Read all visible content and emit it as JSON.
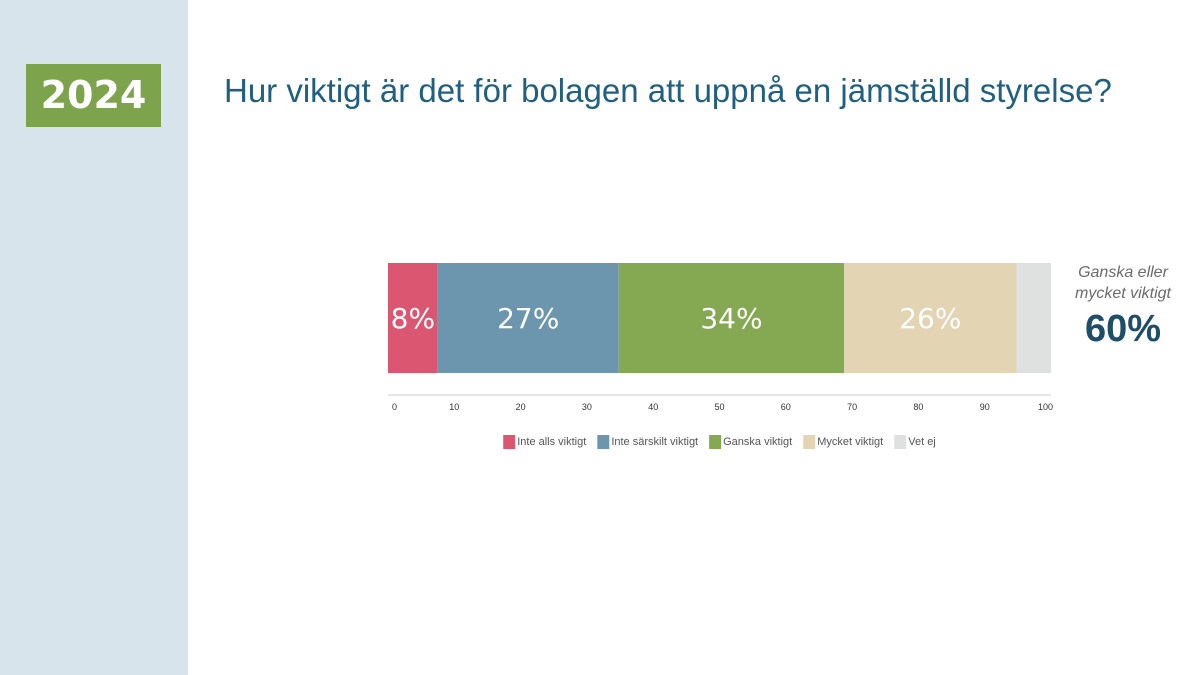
{
  "year": "2024",
  "title": "Hur viktigt är det för bolagen att uppnå en jämställd styrelse?",
  "summary": {
    "label_line1": "Ganska eller",
    "label_line2": "mycket viktigt",
    "value": "60%"
  },
  "chart_data": {
    "type": "bar",
    "orientation": "horizontal-stacked",
    "xlim": [
      0,
      100
    ],
    "xticks": [
      0,
      10,
      20,
      30,
      40,
      50,
      60,
      70,
      80,
      90,
      100
    ],
    "grid": false,
    "legend_position": "bottom",
    "series": [
      {
        "name": "Inte alls viktigt",
        "value": 7.5,
        "label": "8%",
        "color": "#db5670",
        "label_color": "#ffffff"
      },
      {
        "name": "Inte särskilt viktigt",
        "value": 27.3,
        "label": "27%",
        "color": "#6b96ae",
        "label_color": "#ffffff"
      },
      {
        "name": "Ganska viktigt",
        "value": 34,
        "label": "34%",
        "color": "#85a953",
        "label_color": "#ffffff"
      },
      {
        "name": "Mycket viktigt",
        "value": 26,
        "label": "26%",
        "color": "#e3d4b4",
        "label_color": "#ffffff"
      },
      {
        "name": "Vet ej",
        "value": 5.2,
        "label": "",
        "color": "#dfe1e1",
        "label_color": "#ffffff"
      }
    ]
  }
}
